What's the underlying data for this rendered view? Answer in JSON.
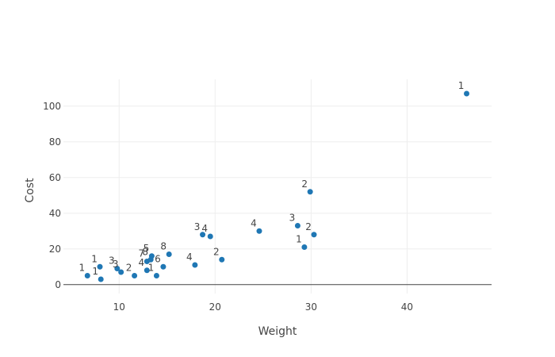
{
  "chart_data": {
    "type": "scatter",
    "title": "",
    "xlabel": "Weight",
    "ylabel": "Cost",
    "xlim": [
      4.2,
      48.8
    ],
    "ylim": [
      -5,
      115
    ],
    "x_ticks": [
      10,
      20,
      30,
      40
    ],
    "y_ticks": [
      0,
      20,
      40,
      60,
      80,
      100
    ],
    "grid": true,
    "legend": "none",
    "marker_color": "#1f77b4",
    "gridline_color": "#eeeeee",
    "text_color": "#444444",
    "series": [
      {
        "points": [
          {
            "x": 6.7,
            "y": 5,
            "label": "1"
          },
          {
            "x": 8.0,
            "y": 10,
            "label": "1"
          },
          {
            "x": 8.1,
            "y": 3,
            "label": "1"
          },
          {
            "x": 9.8,
            "y": 9,
            "label": "3"
          },
          {
            "x": 10.2,
            "y": 7,
            "label": "3"
          },
          {
            "x": 11.6,
            "y": 5,
            "label": "2"
          },
          {
            "x": 12.9,
            "y": 8,
            "label": "4"
          },
          {
            "x": 12.9,
            "y": 13,
            "label": "7"
          },
          {
            "x": 13.3,
            "y": 14,
            "label": "8"
          },
          {
            "x": 13.4,
            "y": 16,
            "label": "5"
          },
          {
            "x": 13.9,
            "y": 5,
            "label": "1"
          },
          {
            "x": 14.6,
            "y": 10,
            "label": "6"
          },
          {
            "x": 15.2,
            "y": 17,
            "label": "8"
          },
          {
            "x": 17.9,
            "y": 11,
            "label": "4"
          },
          {
            "x": 18.7,
            "y": 28,
            "label": "3"
          },
          {
            "x": 19.5,
            "y": 27,
            "label": "4"
          },
          {
            "x": 20.7,
            "y": 14,
            "label": "2"
          },
          {
            "x": 24.6,
            "y": 30,
            "label": "4"
          },
          {
            "x": 28.6,
            "y": 33,
            "label": "3"
          },
          {
            "x": 29.3,
            "y": 21,
            "label": "1"
          },
          {
            "x": 29.9,
            "y": 52,
            "label": "2"
          },
          {
            "x": 30.3,
            "y": 28,
            "label": "2"
          },
          {
            "x": 46.2,
            "y": 107,
            "label": "1"
          }
        ]
      }
    ]
  }
}
